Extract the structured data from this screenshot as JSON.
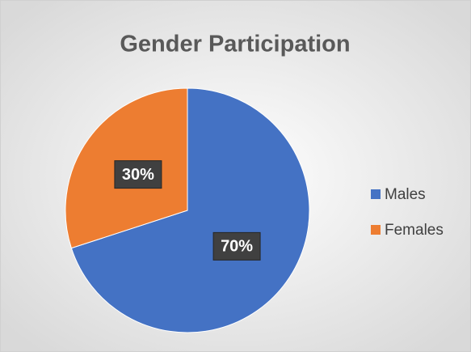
{
  "chart_data": {
    "type": "pie",
    "title": "Gender Participation",
    "categories": [
      "Males",
      "Females"
    ],
    "values": [
      70,
      30
    ],
    "value_labels": [
      "70%",
      "30%"
    ],
    "colors": [
      "#4472c4",
      "#ed7d31"
    ],
    "legend": "right"
  }
}
